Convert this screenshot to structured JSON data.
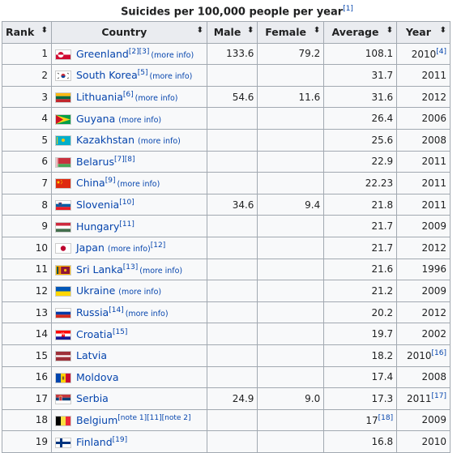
{
  "caption": {
    "title": "Suicides per 100,000 people per year",
    "ref": "[1]"
  },
  "headers": {
    "rank": "Rank",
    "country": "Country",
    "male": "Male",
    "female": "Female",
    "average": "Average",
    "year": "Year",
    "sort_glyph": "⬍"
  },
  "rows": [
    {
      "rank": "1",
      "country": "Greenland",
      "ref": "[2][3]",
      "more": "(more info)",
      "male": "133.6",
      "female": "79.2",
      "average": "108.1",
      "year": "2010",
      "year_ref": "[4]",
      "flag": "greenland"
    },
    {
      "rank": "2",
      "country": "South Korea",
      "ref": "[5]",
      "more": "(more info)",
      "male": "",
      "female": "",
      "average": "31.7",
      "year": "2011",
      "year_ref": "",
      "flag": "south-korea"
    },
    {
      "rank": "3",
      "country": "Lithuania",
      "ref": "[6]",
      "more": "(more info)",
      "male": "54.6",
      "female": "11.6",
      "average": "31.6",
      "year": "2012",
      "year_ref": "",
      "flag": "lithuania"
    },
    {
      "rank": "4",
      "country": "Guyana",
      "ref": "",
      "more": "(more info)",
      "male": "",
      "female": "",
      "average": "26.4",
      "year": "2006",
      "year_ref": "",
      "flag": "guyana"
    },
    {
      "rank": "5",
      "country": "Kazakhstan",
      "ref": "",
      "more": "(more info)",
      "male": "",
      "female": "",
      "average": "25.6",
      "year": "2008",
      "year_ref": "",
      "flag": "kazakhstan"
    },
    {
      "rank": "6",
      "country": "Belarus",
      "ref": "[7][8]",
      "more": "",
      "male": "",
      "female": "",
      "average": "22.9",
      "year": "2011",
      "year_ref": "",
      "flag": "belarus"
    },
    {
      "rank": "7",
      "country": "China",
      "ref": "[9]",
      "more": "(more info)",
      "male": "",
      "female": "",
      "average": "22.23",
      "year": "2011",
      "year_ref": "",
      "flag": "china"
    },
    {
      "rank": "8",
      "country": "Slovenia",
      "ref": "[10]",
      "more": "",
      "male": "34.6",
      "female": "9.4",
      "average": "21.8",
      "year": "2011",
      "year_ref": "",
      "flag": "slovenia"
    },
    {
      "rank": "9",
      "country": "Hungary",
      "ref": "[11]",
      "more": "",
      "male": "",
      "female": "",
      "average": "21.7",
      "year": "2009",
      "year_ref": "",
      "flag": "hungary"
    },
    {
      "rank": "10",
      "country": "Japan",
      "ref": "[12]",
      "more": "(more info)",
      "more_first": true,
      "male": "",
      "female": "",
      "average": "21.7",
      "year": "2012",
      "year_ref": "",
      "flag": "japan"
    },
    {
      "rank": "11",
      "country": "Sri Lanka",
      "ref": "[13]",
      "more": "(more info)",
      "male": "",
      "female": "",
      "average": "21.6",
      "year": "1996",
      "year_ref": "",
      "flag": "sri-lanka"
    },
    {
      "rank": "12",
      "country": "Ukraine",
      "ref": "",
      "more": "(more info)",
      "male": "",
      "female": "",
      "average": "21.2",
      "year": "2009",
      "year_ref": "",
      "flag": "ukraine"
    },
    {
      "rank": "13",
      "country": "Russia",
      "ref": "[14]",
      "more": "(more info)",
      "male": "",
      "female": "",
      "average": "20.2",
      "year": "2012",
      "year_ref": "",
      "flag": "russia"
    },
    {
      "rank": "14",
      "country": "Croatia",
      "ref": "[15]",
      "more": "",
      "male": "",
      "female": "",
      "average": "19.7",
      "year": "2002",
      "year_ref": "",
      "flag": "croatia"
    },
    {
      "rank": "15",
      "country": "Latvia",
      "ref": "",
      "more": "",
      "male": "",
      "female": "",
      "average": "18.2",
      "year": "2010",
      "year_ref": "[16]",
      "flag": "latvia"
    },
    {
      "rank": "16",
      "country": "Moldova",
      "ref": "",
      "more": "",
      "male": "",
      "female": "",
      "average": "17.4",
      "year": "2008",
      "year_ref": "",
      "flag": "moldova"
    },
    {
      "rank": "17",
      "country": "Serbia",
      "ref": "",
      "more": "",
      "male": "24.9",
      "female": "9.0",
      "average": "17.3",
      "year": "2011",
      "year_ref": "[17]",
      "flag": "serbia"
    },
    {
      "rank": "18",
      "country": "Belgium",
      "ref": "[note 1][11][note 2]",
      "more": "",
      "male": "",
      "female": "",
      "average": "17",
      "average_ref": "[18]",
      "year": "2009",
      "year_ref": "",
      "flag": "belgium"
    },
    {
      "rank": "19",
      "country": "Finland",
      "ref": "[19]",
      "more": "",
      "male": "",
      "female": "",
      "average": "16.8",
      "year": "2010",
      "year_ref": "",
      "flag": "finland"
    }
  ]
}
